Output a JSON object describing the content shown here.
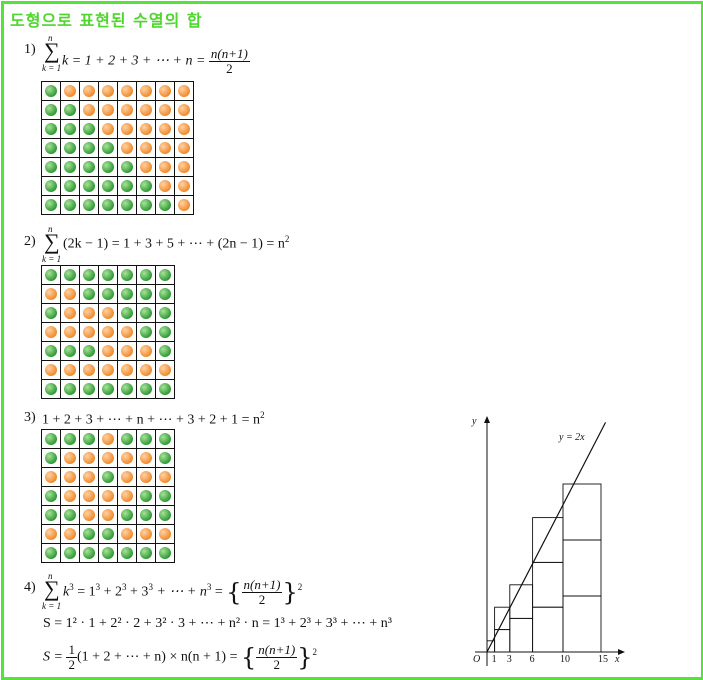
{
  "title": "도형으로 표현된 수열의 합",
  "section1": {
    "num": "1)",
    "sigma_top": "n",
    "sigma_bottom": "k = 1",
    "expr": "k = 1 + 2 + 3 + ⋯ + n =",
    "frac_num": "n(n+1)",
    "frac_den": "2"
  },
  "section2": {
    "num": "2)",
    "sigma_top": "n",
    "sigma_bottom": "k = 1",
    "expr": "(2k − 1) = 1 + 3 + 5 + ⋯ + (2n − 1) = n",
    "sup": "2"
  },
  "section3": {
    "num": "3)",
    "expr": "1 + 2 + 3 + ⋯ + n + ⋯ + 3 + 2 + 1 = n",
    "sup": "2"
  },
  "section4": {
    "num": "4)",
    "sigma_top": "n",
    "sigma_bottom": "k = 1",
    "line1_a": "k",
    "line1_b": " = 1",
    "line1_c": " + 2",
    "line1_d": " + 3",
    "line1_e": " + ⋯ + n",
    "line1_f": " =",
    "frac_num": "n(n+1)",
    "frac_den": "2",
    "line2": "S = 1² · 1 + 2² · 2 + 3² · 3 + ⋯ + n² · n = 1³ + 2³ + 3³ + ⋯ + n³",
    "line3_a": "S =",
    "half_num": "1",
    "half_den": "2",
    "line3_b": "(1 + 2 + ⋯ + n) × n(n + 1) ="
  },
  "colors": {
    "green": "#2f9a34",
    "orange": "#f08a2c",
    "accent": "#55e23a"
  },
  "grid1": [
    "GOOOOOOO",
    "GGOOOOOO",
    "GGGOOOOO",
    "GGGGOOOO",
    "GGGGGOOO",
    "GGGGGGOO",
    "GGGGGGGO"
  ],
  "grid2": [
    "GGGGGGG",
    "OOGGGGG",
    "GOOOGGG",
    "OOOOOGG",
    "GGGOOOG",
    "OOOOOOO",
    "GGGGGGG"
  ],
  "grid3": [
    "GGGOGGG",
    "GOOOOOG",
    "OOOGOOO",
    "GOOOOGG",
    "GGOOGGG",
    "OOGGOOO",
    "GGGGGGG"
  ],
  "chart_data": {
    "type": "diagram",
    "line_label": "y = 2x",
    "ylabel": "y",
    "xlabel": "x",
    "origin": "O",
    "x_ticks": [
      "1",
      "3",
      "6",
      "10",
      "15"
    ],
    "columns": [
      {
        "x0": 0,
        "x1": 1,
        "height": 1
      },
      {
        "x0": 1,
        "x1": 3,
        "height": 3
      },
      {
        "x0": 3,
        "x1": 6,
        "height": 6
      },
      {
        "x0": 6,
        "x1": 10,
        "height": 10
      },
      {
        "x0": 10,
        "x1": 15,
        "height": 15
      }
    ]
  }
}
